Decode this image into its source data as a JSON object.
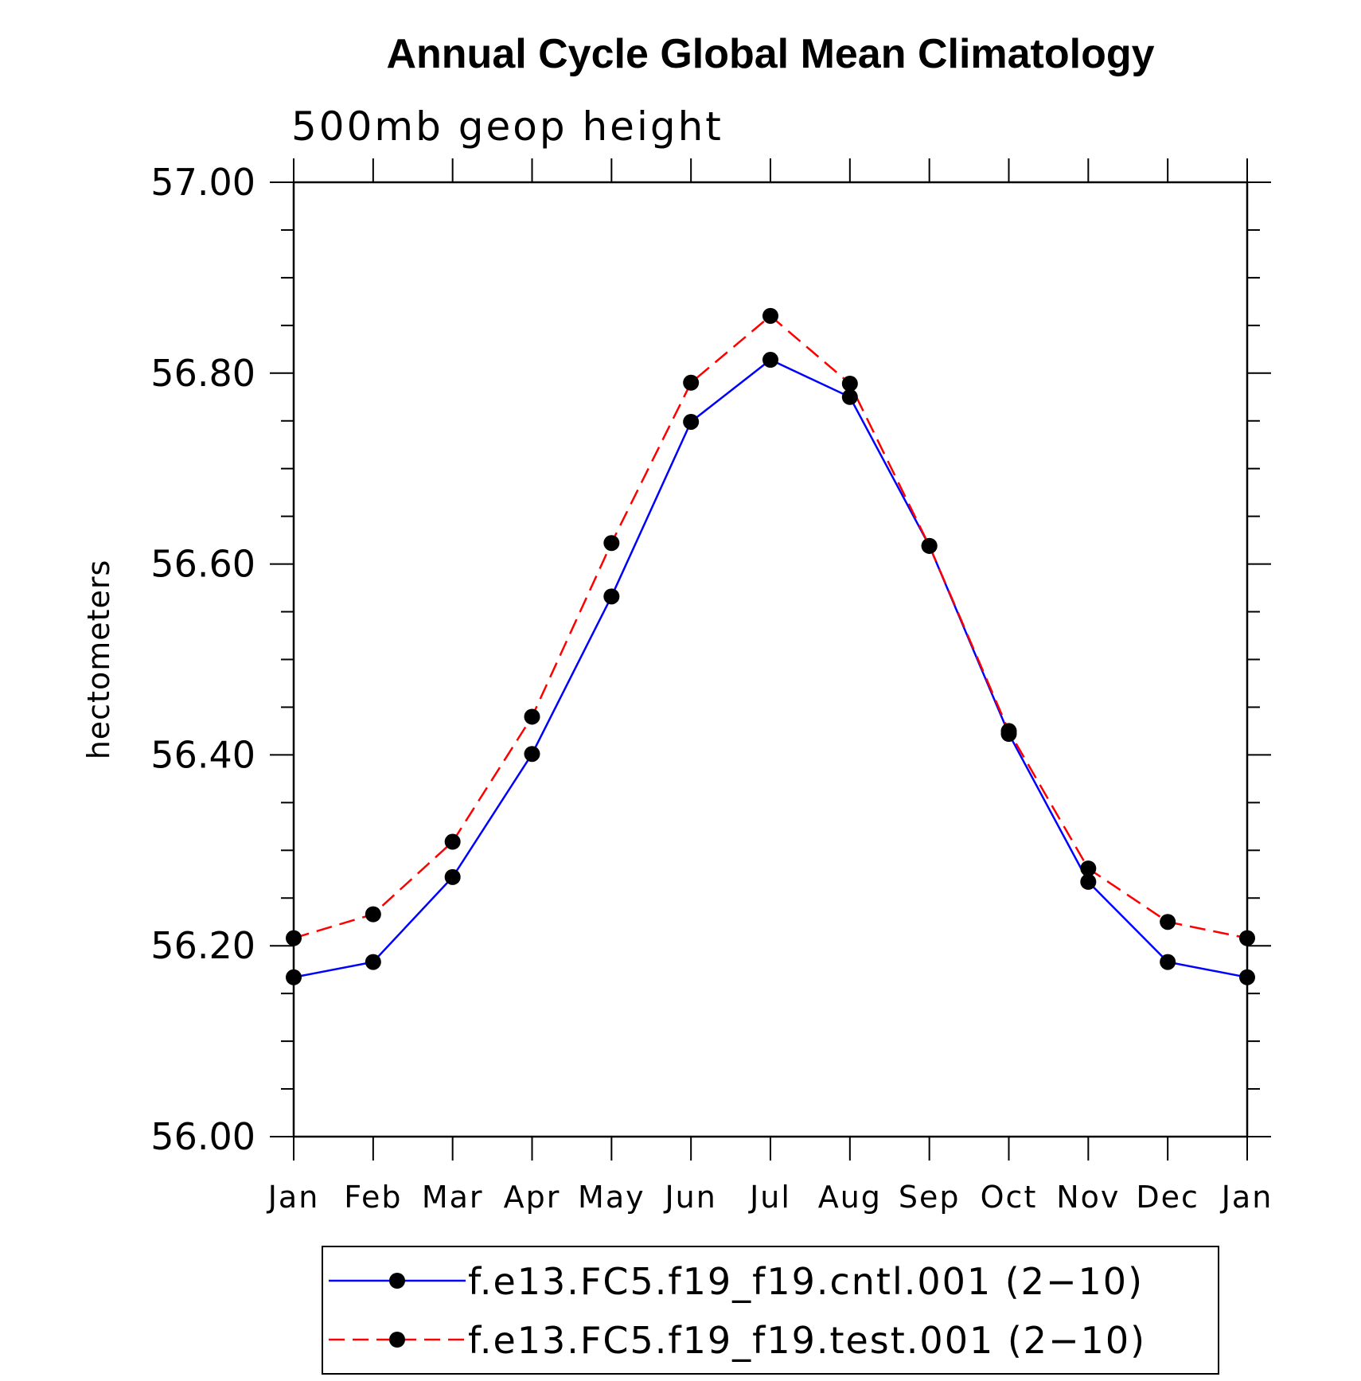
{
  "chart_data": {
    "type": "line",
    "title": "Annual Cycle Global Mean Climatology",
    "subtitle": "500mb geop height",
    "ylabel": "hectometers",
    "xlabel": "",
    "categories": [
      "Jan",
      "Feb",
      "Mar",
      "Apr",
      "May",
      "Jun",
      "Jul",
      "Aug",
      "Sep",
      "Oct",
      "Nov",
      "Dec",
      "Jan"
    ],
    "ylim": [
      56.0,
      57.0
    ],
    "yticks": [
      "56.00",
      "56.20",
      "56.40",
      "56.60",
      "56.80",
      "57.00"
    ],
    "yminor_step": 0.05,
    "grid": false,
    "legend_position": "bottom",
    "series": [
      {
        "name": "f.e13.FC5.f19_f19.cntl.001 (2−10)",
        "color": "#0000ff",
        "dash": "solid",
        "marker": "filled-circle",
        "values": [
          56.167,
          56.183,
          56.272,
          56.401,
          56.566,
          56.749,
          56.814,
          56.775,
          56.619,
          56.422,
          56.267,
          56.183,
          56.167
        ]
      },
      {
        "name": "f.e13.FC5.f19_f19.test.001 (2−10)",
        "color": "#ff0000",
        "dash": "dashed",
        "marker": "filled-circle",
        "values": [
          56.208,
          56.233,
          56.309,
          56.44,
          56.622,
          56.79,
          56.86,
          56.789,
          56.619,
          56.425,
          56.281,
          56.225,
          56.208
        ]
      }
    ]
  }
}
